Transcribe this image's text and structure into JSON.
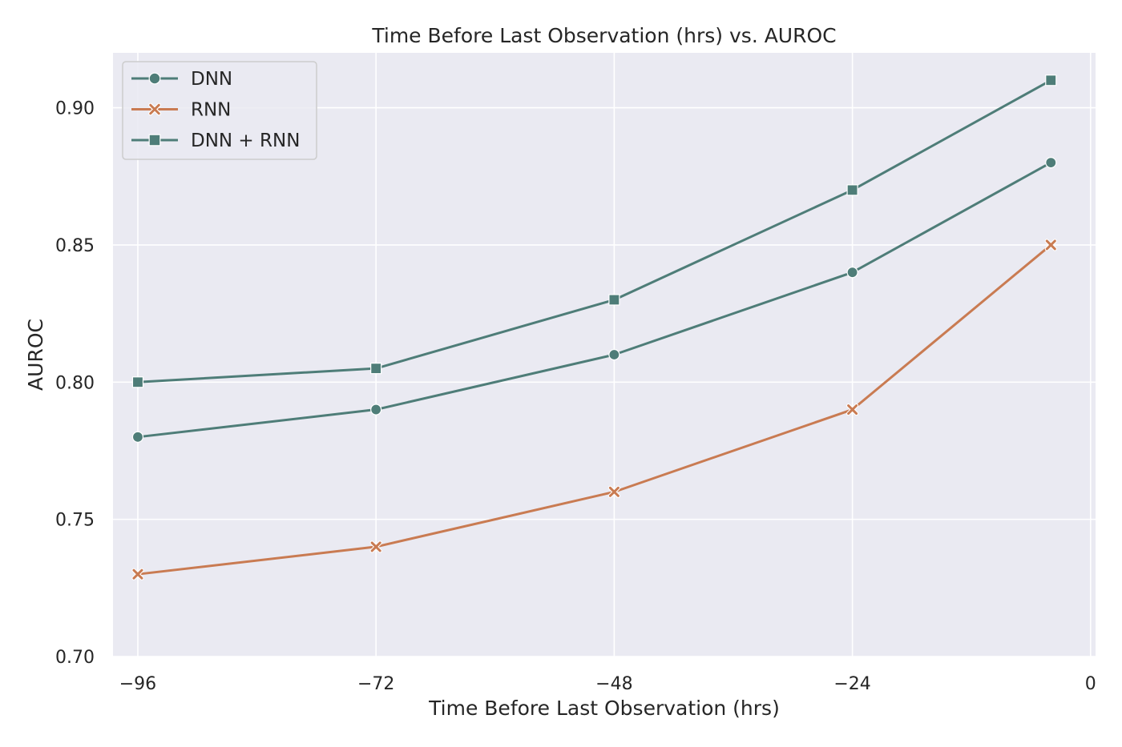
{
  "chart_data": {
    "type": "line",
    "title": "Time Before Last Observation (hrs) vs. AUROC",
    "xlabel": "Time Before Last Observation (hrs)",
    "ylabel": "AUROC",
    "x": [
      -96,
      -72,
      -48,
      -24,
      -4
    ],
    "xlim": [
      -98.5,
      0.5
    ],
    "ylim": [
      0.7,
      0.92
    ],
    "x_ticks": [
      -96,
      -72,
      -48,
      -24,
      0
    ],
    "x_tick_labels": [
      "−96",
      "−72",
      "−48",
      "−24",
      "0"
    ],
    "y_ticks": [
      0.7,
      0.75,
      0.8,
      0.85,
      0.9
    ],
    "y_tick_labels": [
      "0.70",
      "0.75",
      "0.80",
      "0.85",
      "0.90"
    ],
    "grid": true,
    "legend_position": "top-left",
    "background": "#eaeaf2",
    "series": [
      {
        "name": "DNN",
        "values": [
          0.78,
          0.79,
          0.81,
          0.84,
          0.88
        ],
        "color": "#4e7d78",
        "marker": "circle"
      },
      {
        "name": "RNN",
        "values": [
          0.73,
          0.74,
          0.76,
          0.79,
          0.85
        ],
        "color": "#c97b52",
        "marker": "x"
      },
      {
        "name": "DNN + RNN",
        "values": [
          0.8,
          0.805,
          0.83,
          0.87,
          0.91
        ],
        "color": "#4e7d78",
        "marker": "square"
      }
    ]
  }
}
